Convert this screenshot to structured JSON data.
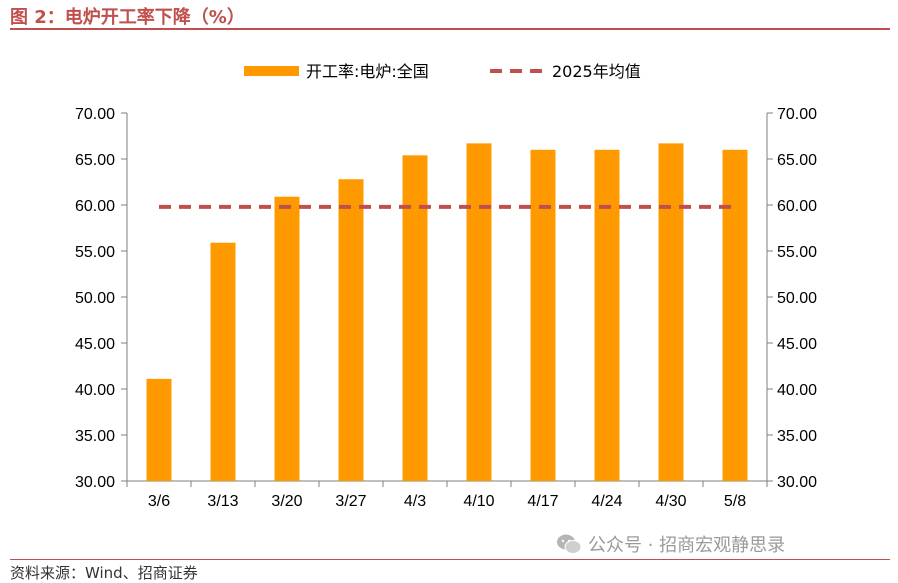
{
  "figure": {
    "title": "图 2：电炉开工率下降（%）",
    "source": "资料来源：Wind、招商证券",
    "watermark": "公众号 · 招商宏观静思录"
  },
  "colors": {
    "accent": "#c0504d",
    "bar": "#ff9900",
    "dashed_line": "#c0504d",
    "axis": "#7f7f7f"
  },
  "chart_data": {
    "type": "bar",
    "categories": [
      "3/6",
      "3/13",
      "3/20",
      "3/27",
      "4/3",
      "4/10",
      "4/17",
      "4/24",
      "4/30",
      "5/8"
    ],
    "series": [
      {
        "name": "开工率:电炉:全国",
        "type": "bar",
        "values": [
          41.1,
          55.9,
          60.9,
          62.8,
          65.4,
          66.7,
          66.0,
          66.0,
          66.7,
          66.0
        ]
      },
      {
        "name": "2025年均值",
        "type": "dashed-line",
        "values": [
          59.8,
          59.8,
          59.8,
          59.8,
          59.8,
          59.8,
          59.8,
          59.8,
          59.8,
          59.8
        ]
      }
    ],
    "ylim": [
      30,
      70
    ],
    "y_ticks": [
      "30.00",
      "35.00",
      "40.00",
      "45.00",
      "50.00",
      "55.00",
      "60.00",
      "65.00",
      "70.00"
    ],
    "y2_ticks": [
      "30.00",
      "35.00",
      "40.00",
      "45.00",
      "50.00",
      "55.00",
      "60.00",
      "65.00",
      "70.00"
    ],
    "legend_position": "top-center",
    "grid": false
  }
}
